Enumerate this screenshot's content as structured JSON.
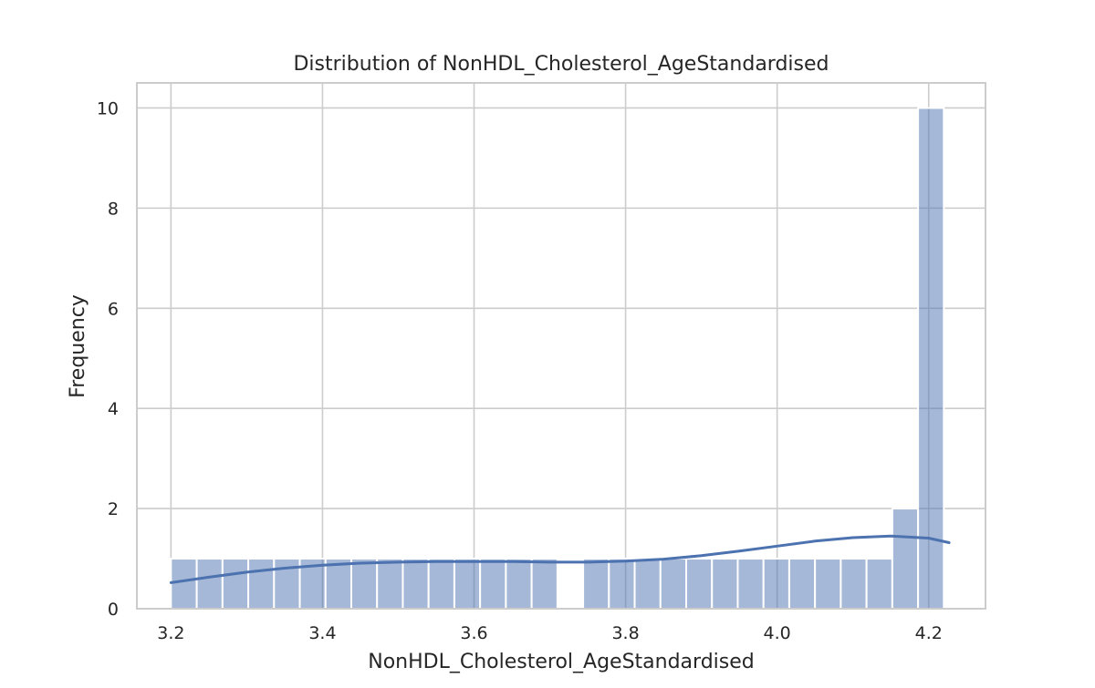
{
  "chart_data": {
    "type": "bar",
    "subtype": "histogram-with-kde",
    "title": "Distribution of NonHDL_Cholesterol_AgeStandardised",
    "xlabel": "NonHDL_Cholesterol_AgeStandardised",
    "ylabel": "Frequency",
    "xlim": [
      3.155,
      4.275
    ],
    "ylim": [
      0,
      10.5
    ],
    "xticks": [
      3.2,
      3.4,
      3.6,
      3.8,
      4.0,
      4.2
    ],
    "xtick_labels": [
      "3.2",
      "3.4",
      "3.6",
      "3.8",
      "4.0",
      "4.2"
    ],
    "yticks": [
      0,
      2,
      4,
      6,
      8,
      10
    ],
    "ytick_labels": [
      "0",
      "2",
      "4",
      "6",
      "8",
      "10"
    ],
    "grid": true,
    "bin_edges": [
      3.2,
      3.234,
      3.268,
      3.302,
      3.336,
      3.37,
      3.404,
      3.438,
      3.472,
      3.506,
      3.54,
      3.574,
      3.608,
      3.642,
      3.676,
      3.71,
      3.744,
      3.778,
      3.812,
      3.846,
      3.88,
      3.914,
      3.948,
      3.982,
      4.016,
      4.05,
      4.084,
      4.118,
      4.152,
      4.186,
      4.22
    ],
    "counts": [
      1,
      1,
      1,
      1,
      1,
      1,
      1,
      1,
      1,
      1,
      1,
      1,
      1,
      1,
      1,
      0,
      1,
      1,
      1,
      1,
      1,
      1,
      1,
      1,
      1,
      1,
      1,
      1,
      2,
      10
    ],
    "kde": {
      "x": [
        3.2,
        3.25,
        3.3,
        3.35,
        3.4,
        3.45,
        3.5,
        3.55,
        3.6,
        3.65,
        3.7,
        3.75,
        3.8,
        3.85,
        3.9,
        3.95,
        4.0,
        4.05,
        4.1,
        4.15,
        4.2,
        4.227
      ],
      "y": [
        0.52,
        0.63,
        0.73,
        0.81,
        0.87,
        0.91,
        0.93,
        0.94,
        0.94,
        0.94,
        0.93,
        0.93,
        0.95,
        0.99,
        1.06,
        1.15,
        1.25,
        1.35,
        1.42,
        1.45,
        1.41,
        1.32
      ]
    },
    "colors": {
      "bar": "#4c72b0",
      "kde": "#4c72b0",
      "grid": "#cccccc"
    }
  }
}
